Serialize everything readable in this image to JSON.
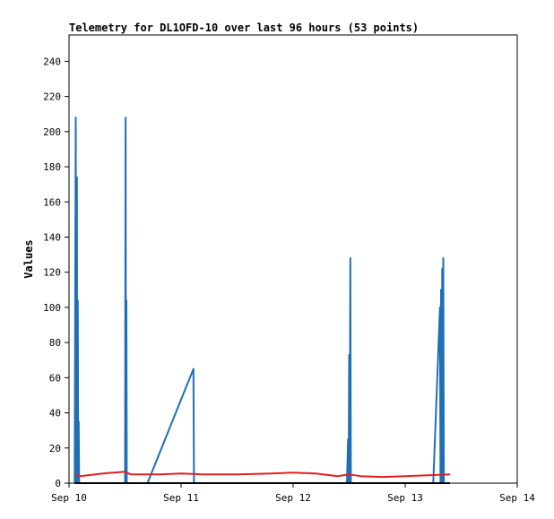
{
  "chart_data": {
    "type": "line",
    "title": "Telemetry for DL1OFD-10 over last 96 hours (53 points)",
    "ylabel": "Values",
    "xlabel": "",
    "x_unit": "days since Sep 10 00:00",
    "xlim": [
      0,
      4
    ],
    "ylim": [
      0,
      255
    ],
    "x_ticks": [
      {
        "value": 0,
        "label": "Sep 10"
      },
      {
        "value": 1,
        "label": "Sep 11"
      },
      {
        "value": 2,
        "label": "Sep 12"
      },
      {
        "value": 3,
        "label": "Sep 13"
      },
      {
        "value": 4,
        "label": "Sep 14"
      }
    ],
    "y_ticks": [
      0,
      20,
      40,
      60,
      80,
      100,
      120,
      140,
      160,
      180,
      200,
      220,
      240
    ],
    "grid": false,
    "legend": "none",
    "series": [
      {
        "color": "#1f6fb5",
        "points": [
          [
            0.05,
            0
          ],
          [
            0.06,
            208
          ],
          [
            0.065,
            0
          ],
          [
            0.07,
            174
          ],
          [
            0.073,
            0
          ],
          [
            0.078,
            104
          ],
          [
            0.082,
            0
          ],
          [
            0.086,
            35
          ],
          [
            0.09,
            0
          ],
          [
            0.5,
            0
          ],
          [
            0.505,
            208
          ],
          [
            0.508,
            0
          ],
          [
            0.512,
            104
          ],
          [
            0.515,
            0
          ],
          [
            0.7,
            0
          ],
          [
            1.11,
            65
          ],
          [
            1.115,
            0
          ],
          [
            2.48,
            0
          ],
          [
            2.49,
            25
          ],
          [
            2.495,
            0
          ],
          [
            2.5,
            73
          ],
          [
            2.505,
            0
          ],
          [
            2.51,
            128
          ],
          [
            2.515,
            0
          ],
          [
            3.25,
            0
          ],
          [
            3.31,
            100
          ],
          [
            3.315,
            0
          ],
          [
            3.32,
            110
          ],
          [
            3.325,
            0
          ],
          [
            3.33,
            122
          ],
          [
            3.335,
            0
          ],
          [
            3.34,
            128
          ],
          [
            3.345,
            0
          ]
        ]
      },
      {
        "color": "#e02020",
        "points": [
          [
            0.06,
            5
          ],
          [
            0.1,
            4
          ],
          [
            0.3,
            5.5
          ],
          [
            0.5,
            6.5
          ],
          [
            0.55,
            5
          ],
          [
            0.8,
            5
          ],
          [
            1.0,
            5.5
          ],
          [
            1.2,
            5
          ],
          [
            1.5,
            5
          ],
          [
            1.8,
            5.5
          ],
          [
            2.0,
            6
          ],
          [
            2.2,
            5.5
          ],
          [
            2.4,
            4
          ],
          [
            2.5,
            5
          ],
          [
            2.6,
            4
          ],
          [
            2.8,
            3.5
          ],
          [
            3.0,
            4
          ],
          [
            3.2,
            4.5
          ],
          [
            3.4,
            5
          ]
        ]
      },
      {
        "color": "#000000",
        "points": [
          [
            0.05,
            0
          ],
          [
            3.4,
            0
          ]
        ]
      }
    ]
  }
}
